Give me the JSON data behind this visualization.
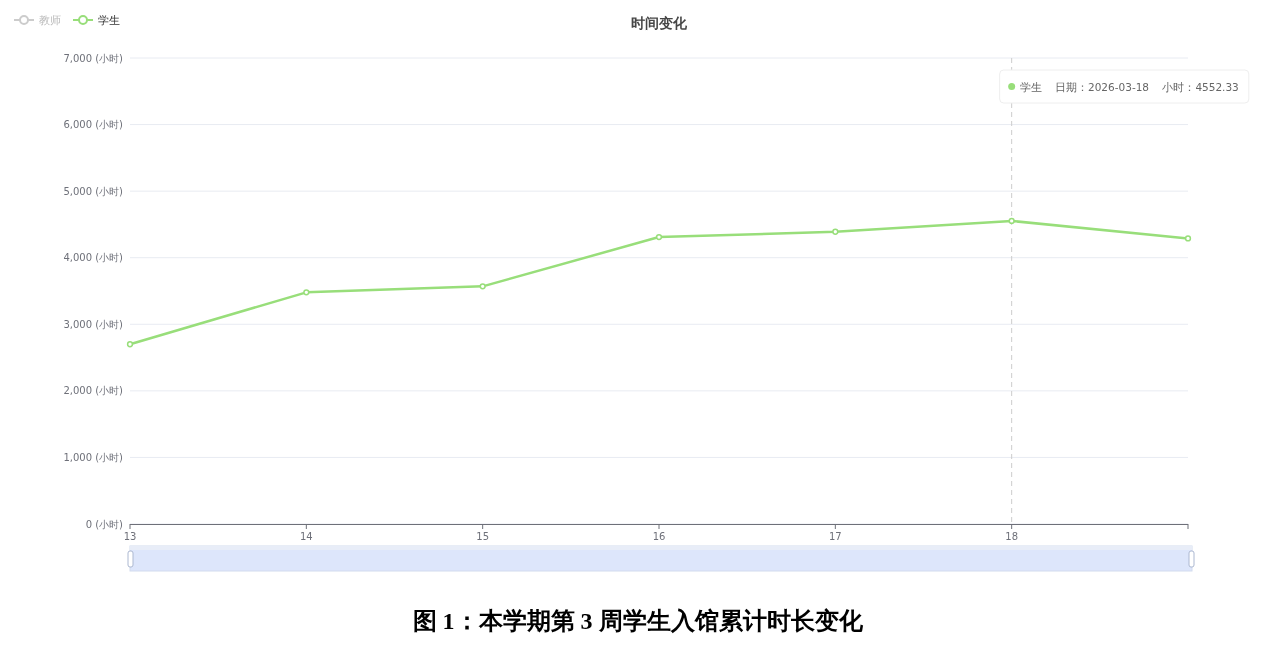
{
  "chart_data": {
    "type": "line",
    "title": "时间变化",
    "categories": [
      "13",
      "14",
      "15",
      "16",
      "17",
      "18",
      null
    ],
    "series": [
      {
        "name": "教师",
        "color": "#cccccc",
        "values": [
          null,
          null,
          null,
          null,
          null,
          null,
          null
        ]
      },
      {
        "name": "学生",
        "color": "#98de7a",
        "values": [
          2700,
          3480,
          3570,
          4310,
          4390,
          4552.33,
          4290
        ]
      }
    ],
    "ylim": [
      0,
      7000
    ],
    "yticks": [
      {
        "value": 0,
        "label": "0 (小时)"
      },
      {
        "value": 1000,
        "label": "1,000 (小时)"
      },
      {
        "value": 2000,
        "label": "2,000 (小时)"
      },
      {
        "value": 3000,
        "label": "3,000 (小时)"
      },
      {
        "value": 4000,
        "label": "4,000 (小时)"
      },
      {
        "value": 5000,
        "label": "5,000 (小时)"
      },
      {
        "value": 6000,
        "label": "6,000 (小时)"
      },
      {
        "value": 7000,
        "label": "7,000 (小时)"
      }
    ],
    "grid": "y",
    "legend": "top left",
    "marker": "circle",
    "line_style": "solid",
    "ref_lines": [
      {
        "axis": "x",
        "value": "18",
        "color": "#cccccc",
        "line_style": "dashed"
      }
    ],
    "annotations": [
      "学生    日期：2026-03-18    小时：4552.33",
      "图 1：本学期第 3 周学生入馆累计时长变化"
    ]
  }
}
